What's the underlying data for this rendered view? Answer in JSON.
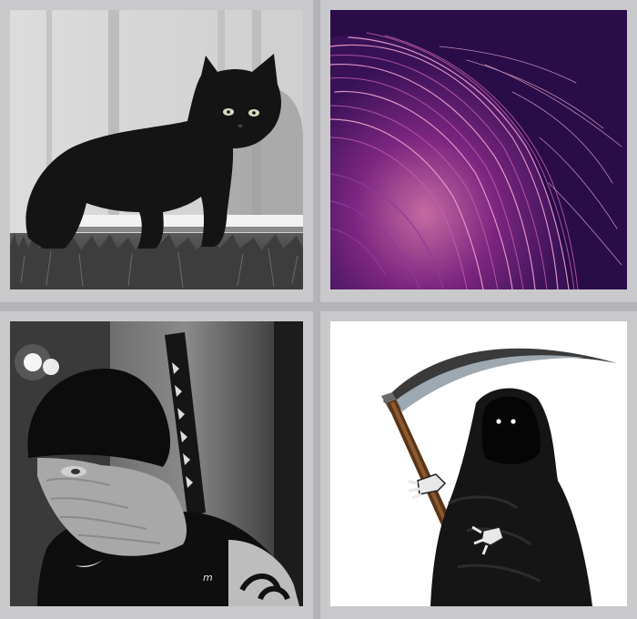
{
  "gallery": {
    "tiles": [
      {
        "subject": "black-kitten"
      },
      {
        "subject": "purple-hair"
      },
      {
        "subject": "masked-man-with-sword"
      },
      {
        "subject": "grim-reaper"
      }
    ]
  },
  "colors": {
    "frame": "#c9c9cb",
    "gap": "#b4b4b6",
    "purple_bg": "#2a0c48",
    "reaper_robe": "#151515",
    "scythe_handle": "#5a3418"
  }
}
